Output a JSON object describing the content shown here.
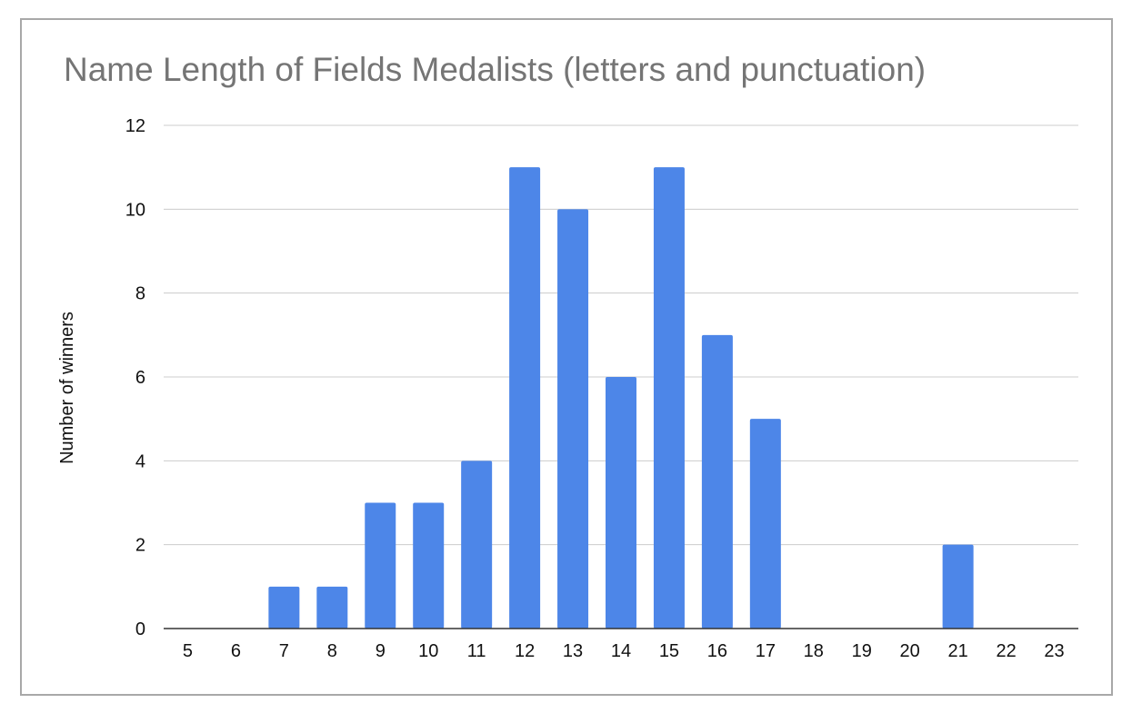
{
  "chart_data": {
    "type": "bar",
    "title": "Name Length of Fields Medalists (letters and punctuation)",
    "xlabel": "",
    "ylabel": "Number of winners",
    "categories": [
      "5",
      "6",
      "7",
      "8",
      "9",
      "10",
      "11",
      "12",
      "13",
      "14",
      "15",
      "16",
      "17",
      "18",
      "19",
      "20",
      "21",
      "22",
      "23"
    ],
    "values": [
      0,
      0,
      1,
      1,
      3,
      3,
      4,
      11,
      10,
      6,
      11,
      7,
      5,
      0,
      0,
      0,
      2,
      0,
      0
    ],
    "ylim": [
      0,
      12
    ],
    "yticks": [
      0,
      2,
      4,
      6,
      8,
      10,
      12
    ],
    "grid": true,
    "legend": "none",
    "colors": {
      "bar": "#4d86e8",
      "grid": "#cccccc",
      "axis": "#333333",
      "title": "#757575"
    }
  }
}
